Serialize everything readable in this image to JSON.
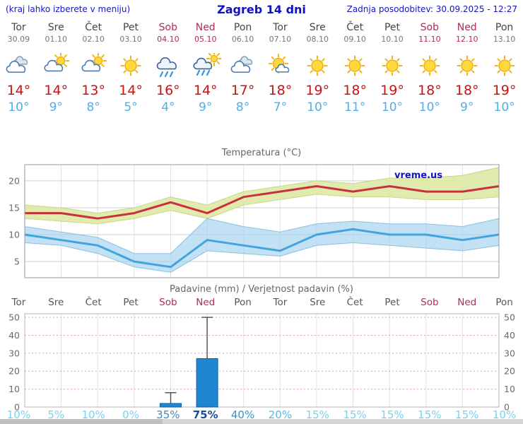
{
  "header": {
    "left": "(kraj lahko izberete v meniju)",
    "title": "Zagreb 14 dni",
    "updated": "Zadnja posodobitev: 30.09.2025 - 12:27"
  },
  "colors": {
    "accent_blue": "#1414cc",
    "temp_max_text": "#cc1212",
    "temp_min_text": "#52aee8",
    "weekend_red": "#b02c55",
    "temp_max_line": "#c9303c",
    "temp_min_line": "#42a4de",
    "band_max": "#dde9a4",
    "band_min": "#a3d2ee",
    "bar_fill": "#2186d2",
    "bar_edge": "#0d5ca6"
  },
  "days": [
    {
      "name": "Tor",
      "date": "30.09",
      "icon": "cloudy",
      "tmax": "14°",
      "tmin": "10°",
      "weekend": false
    },
    {
      "name": "Sre",
      "date": "01.10",
      "icon": "partly-cloudy",
      "tmax": "14°",
      "tmin": "9°",
      "weekend": false
    },
    {
      "name": "Čet",
      "date": "02.10",
      "icon": "partly-cloudy",
      "tmax": "13°",
      "tmin": "8°",
      "weekend": false
    },
    {
      "name": "Pet",
      "date": "03.10",
      "icon": "sunny",
      "tmax": "14°",
      "tmin": "5°",
      "weekend": false
    },
    {
      "name": "Sob",
      "date": "04.10",
      "icon": "rain",
      "tmax": "16°",
      "tmin": "4°",
      "weekend": true
    },
    {
      "name": "Ned",
      "date": "05.10",
      "icon": "rain-sun",
      "tmax": "14°",
      "tmin": "9°",
      "weekend": true
    },
    {
      "name": "Pon",
      "date": "06.10",
      "icon": "cloudy",
      "tmax": "17°",
      "tmin": "8°",
      "weekend": false
    },
    {
      "name": "Tor",
      "date": "07.10",
      "icon": "mostly-sunny",
      "tmax": "18°",
      "tmin": "7°",
      "weekend": false
    },
    {
      "name": "Sre",
      "date": "08.10",
      "icon": "sunny",
      "tmax": "19°",
      "tmin": "10°",
      "weekend": false
    },
    {
      "name": "Čet",
      "date": "09.10",
      "icon": "sunny",
      "tmax": "18°",
      "tmin": "11°",
      "weekend": false
    },
    {
      "name": "Pet",
      "date": "10.10",
      "icon": "sunny",
      "tmax": "19°",
      "tmin": "10°",
      "weekend": false
    },
    {
      "name": "Sob",
      "date": "11.10",
      "icon": "sunny",
      "tmax": "18°",
      "tmin": "10°",
      "weekend": true
    },
    {
      "name": "Ned",
      "date": "12.10",
      "icon": "sunny",
      "tmax": "18°",
      "tmin": "9°",
      "weekend": true
    },
    {
      "name": "Pon",
      "date": "13.10",
      "icon": "sunny",
      "tmax": "19°",
      "tmin": "10°",
      "weekend": false
    }
  ],
  "chart_data": [
    {
      "type": "line",
      "title": "Temperatura (°C)",
      "watermark": "vreme.us",
      "categories": [
        "Tor 30.09",
        "Sre 01.10",
        "Čet 02.10",
        "Pet 03.10",
        "Sob 04.10",
        "Ned 05.10",
        "Pon 06.10",
        "Tor 07.10",
        "Sre 08.10",
        "Čet 09.10",
        "Pet 10.10",
        "Sob 11.10",
        "Ned 12.10",
        "Pon 13.10"
      ],
      "series": [
        {
          "name": "max",
          "values": [
            14,
            14,
            13,
            14,
            16,
            14,
            17,
            18,
            19,
            18,
            19,
            18,
            18,
            19
          ]
        },
        {
          "name": "min",
          "values": [
            10,
            9,
            8,
            5,
            4,
            9,
            8,
            7,
            10,
            11,
            10,
            10,
            9,
            10
          ]
        },
        {
          "name": "max_upper",
          "values": [
            15.5,
            15,
            14,
            15,
            17,
            15.5,
            18,
            19,
            20,
            19.5,
            20.5,
            20.5,
            21,
            22.5
          ]
        },
        {
          "name": "max_lower",
          "values": [
            13,
            12.5,
            12,
            13,
            14.5,
            13,
            15.5,
            16.5,
            17.5,
            17,
            17,
            16.5,
            16.5,
            17
          ]
        },
        {
          "name": "min_upper",
          "values": [
            11.5,
            10.5,
            9.5,
            6.5,
            6.5,
            13,
            11.5,
            10.5,
            12,
            12.5,
            12,
            12,
            11.5,
            13
          ]
        },
        {
          "name": "min_lower",
          "values": [
            8.5,
            8,
            6.5,
            4,
            3,
            7,
            6.5,
            6,
            8,
            8.5,
            8,
            7.5,
            7,
            8
          ]
        }
      ],
      "ylim": [
        2,
        23
      ],
      "yticks": [
        5,
        10,
        15,
        20
      ],
      "grid": true,
      "legend": "none"
    },
    {
      "type": "bar",
      "title": "Padavine (mm) / Verjetnost padavin (%)",
      "categories": [
        "Tor",
        "Sre",
        "Čet",
        "Pet",
        "Sob",
        "Ned",
        "Pon",
        "Tor",
        "Sre",
        "Čet",
        "Pet",
        "Sob",
        "Ned",
        "Pon"
      ],
      "weekend": [
        false,
        false,
        false,
        false,
        true,
        true,
        false,
        false,
        false,
        false,
        false,
        true,
        true,
        false
      ],
      "values_mm": [
        0,
        0,
        0,
        0,
        2,
        27,
        0,
        0,
        0,
        0,
        0,
        0,
        0,
        0
      ],
      "whisker_mm": [
        0,
        0,
        0,
        0,
        8,
        50,
        0,
        0,
        0,
        0,
        0,
        0,
        0,
        0
      ],
      "probabilities": [
        {
          "value": "10%",
          "color": "#79d2ee",
          "bold": false
        },
        {
          "value": "5%",
          "color": "#79d2ee",
          "bold": false
        },
        {
          "value": "10%",
          "color": "#79d2ee",
          "bold": false
        },
        {
          "value": "0%",
          "color": "#79d2ee",
          "bold": false
        },
        {
          "value": "35%",
          "color": "#3f87c4",
          "bold": false
        },
        {
          "value": "75%",
          "color": "#1a4f9f",
          "bold": true
        },
        {
          "value": "40%",
          "color": "#2f96cf",
          "bold": false
        },
        {
          "value": "20%",
          "color": "#58b8de",
          "bold": false
        },
        {
          "value": "15%",
          "color": "#79d2ee",
          "bold": false
        },
        {
          "value": "15%",
          "color": "#79d2ee",
          "bold": false
        },
        {
          "value": "15%",
          "color": "#79d2ee",
          "bold": false
        },
        {
          "value": "15%",
          "color": "#79d2ee",
          "bold": false
        },
        {
          "value": "15%",
          "color": "#79d2ee",
          "bold": false
        },
        {
          "value": "10%",
          "color": "#79d2ee",
          "bold": false
        }
      ],
      "ylim": [
        0,
        52
      ],
      "yticks": [
        0,
        10,
        20,
        30,
        40,
        50
      ],
      "grid": true,
      "legend": "none"
    }
  ]
}
